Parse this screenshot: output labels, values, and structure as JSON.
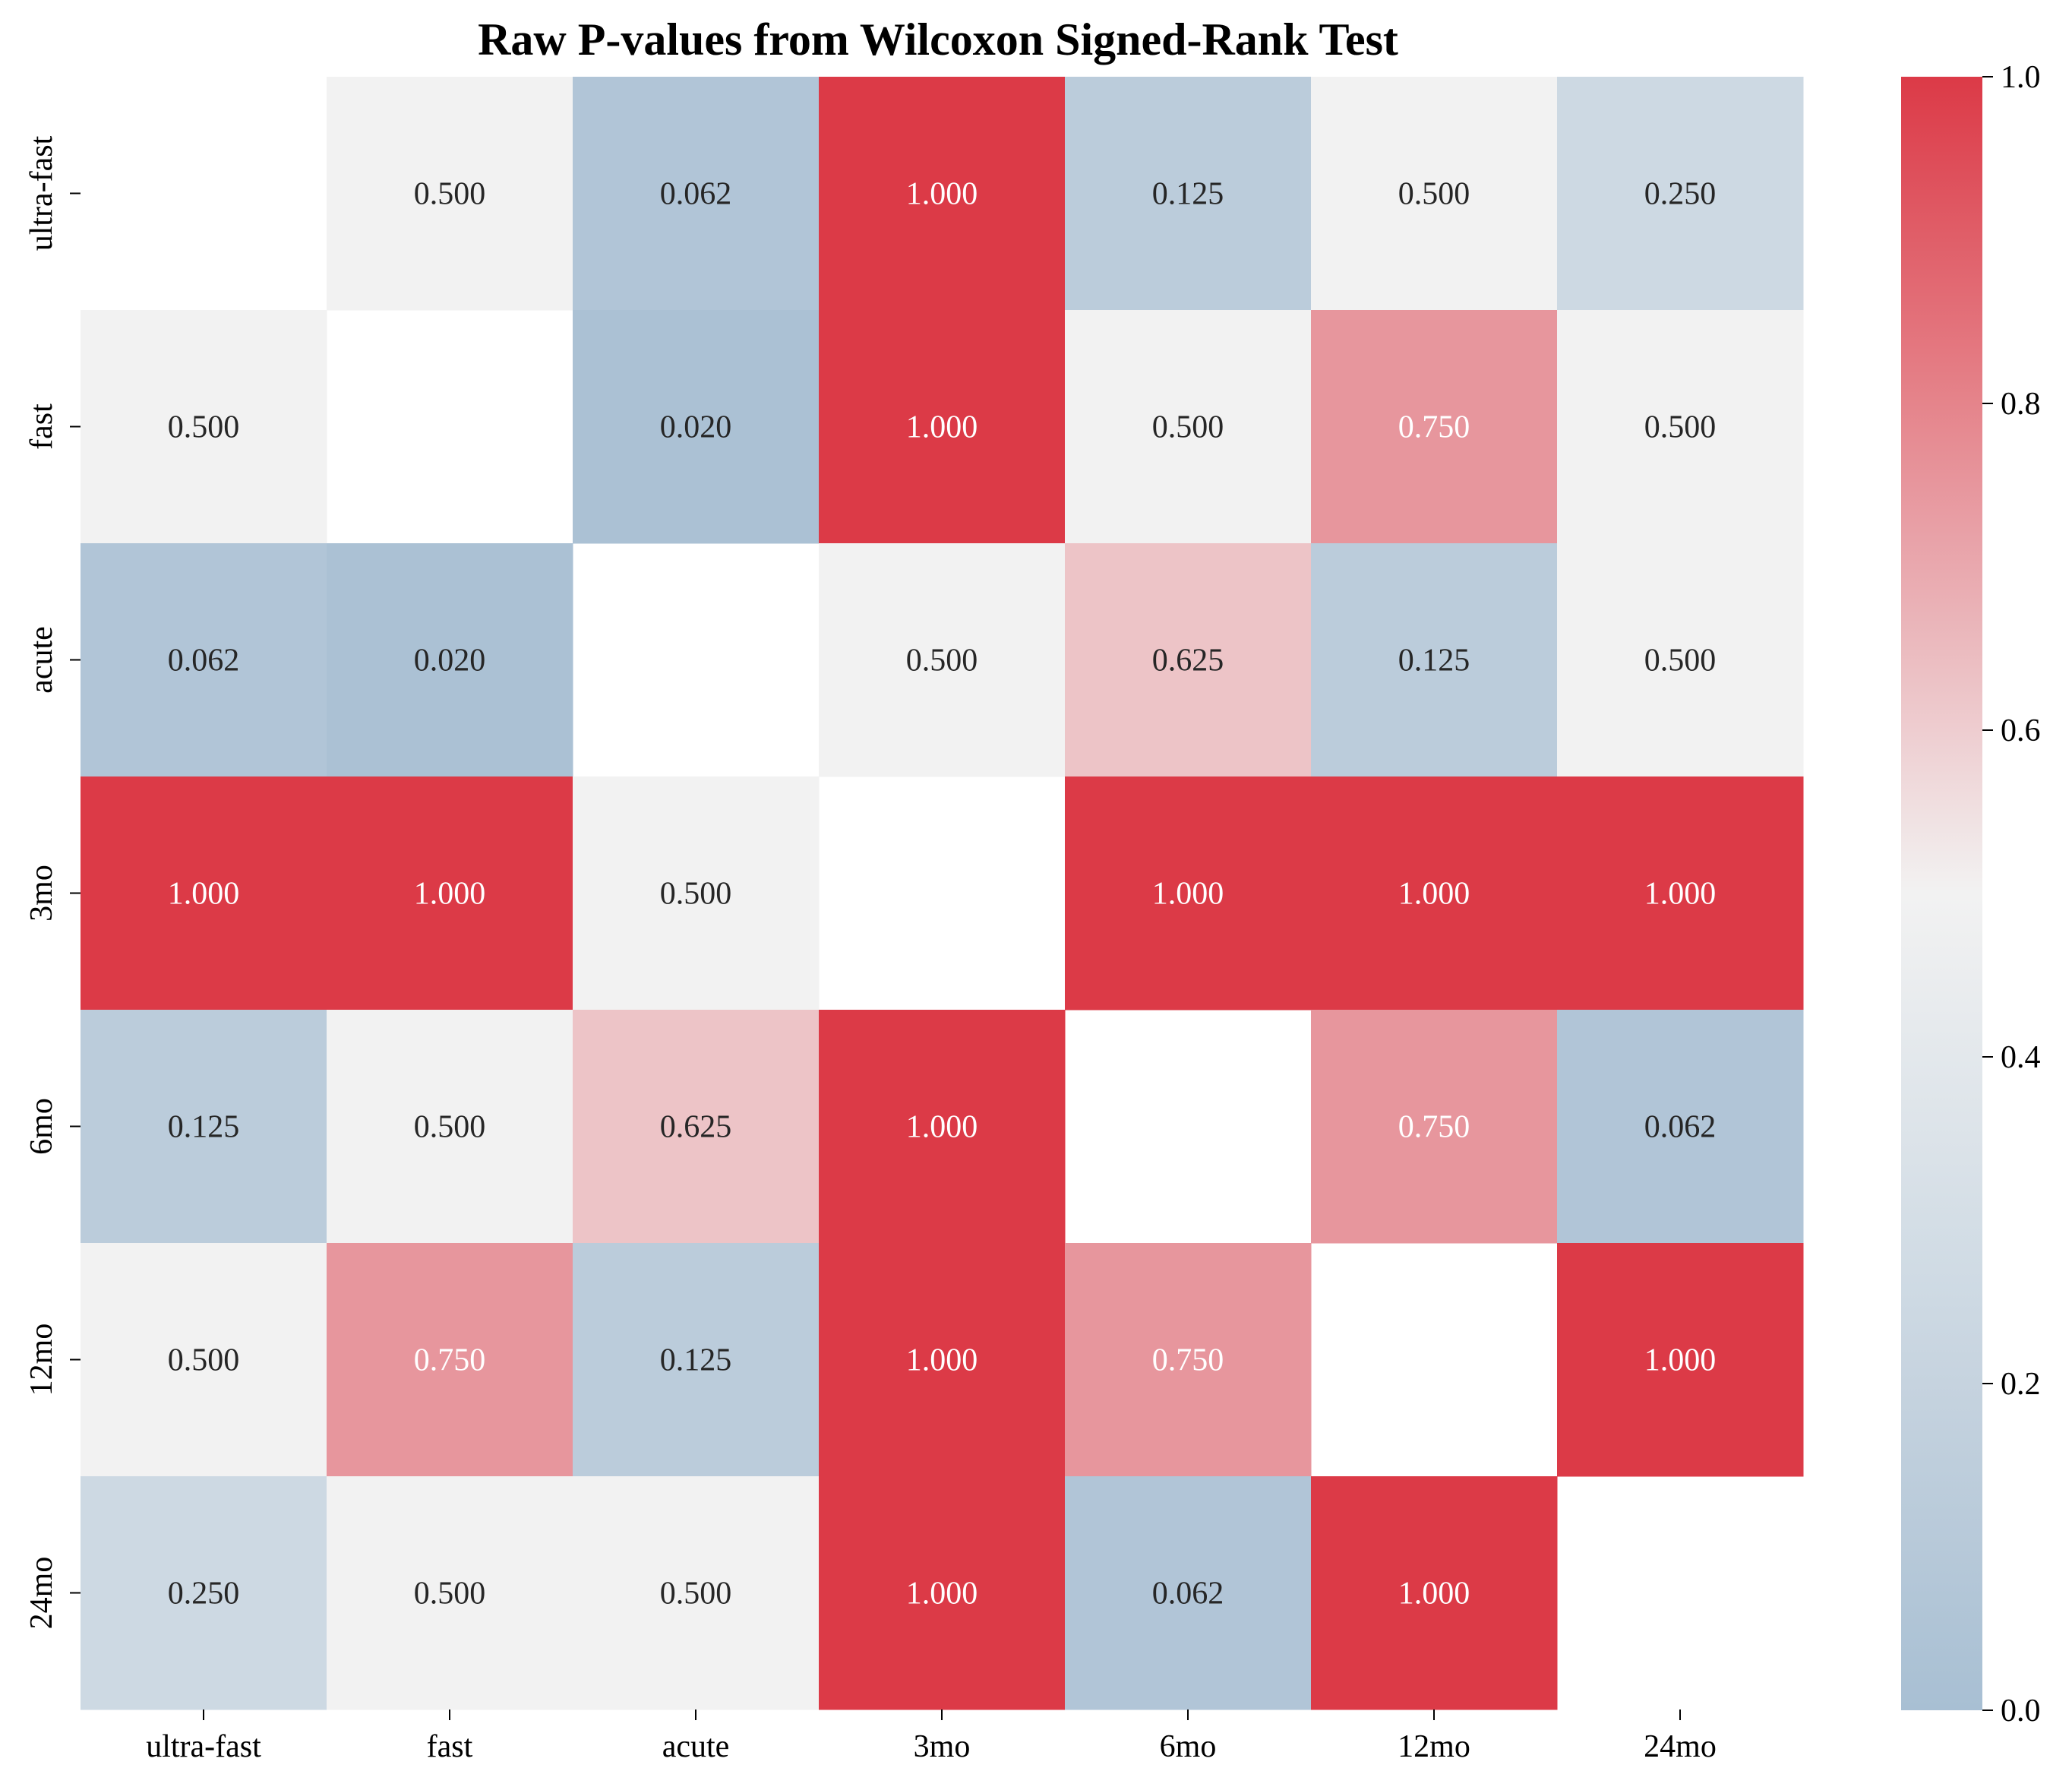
{
  "chart_data": {
    "type": "heatmap",
    "title": "Raw P-values from Wilcoxon Signed-Rank Test",
    "xlabel": "",
    "ylabel": "",
    "x_categories": [
      "ultra-fast",
      "fast",
      "acute",
      "3mo",
      "6mo",
      "12mo",
      "24mo"
    ],
    "y_categories": [
      "ultra-fast",
      "fast",
      "acute",
      "3mo",
      "6mo",
      "12mo",
      "24mo"
    ],
    "values": [
      [
        null,
        0.5,
        0.062,
        1.0,
        0.125,
        0.5,
        0.25
      ],
      [
        0.5,
        null,
        0.02,
        1.0,
        0.5,
        0.75,
        0.5
      ],
      [
        0.062,
        0.02,
        null,
        0.5,
        0.625,
        0.125,
        0.5
      ],
      [
        1.0,
        1.0,
        0.5,
        null,
        1.0,
        1.0,
        1.0
      ],
      [
        0.125,
        0.5,
        0.625,
        1.0,
        null,
        0.75,
        0.062
      ],
      [
        0.5,
        0.75,
        0.125,
        1.0,
        0.75,
        null,
        1.0
      ],
      [
        0.25,
        0.5,
        0.5,
        1.0,
        0.062,
        1.0,
        null
      ]
    ],
    "value_format": "3 decimals",
    "colorbar": {
      "range": [
        0.0,
        1.0
      ],
      "ticks": [
        "0.0",
        "0.2",
        "0.4",
        "0.6",
        "0.8",
        "1.0"
      ],
      "colors": {
        "low": "#a8bfd3",
        "mid": "#f2f2f2",
        "high": "#dc3a47"
      }
    },
    "grid": false,
    "legend": "colorbar-right"
  }
}
